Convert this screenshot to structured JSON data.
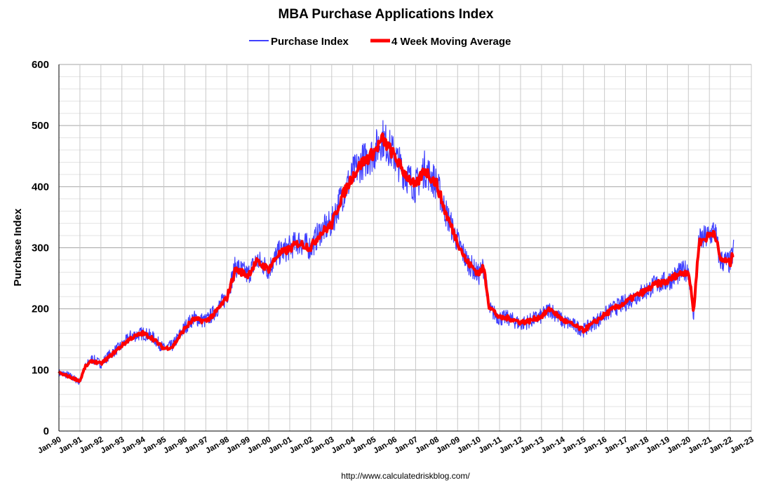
{
  "chart_data": {
    "type": "line",
    "title": "MBA Purchase Applications Index",
    "ylabel": "Purchase Index",
    "xlabel": "",
    "ylim": [
      0,
      600
    ],
    "yticks": [
      0,
      100,
      200,
      300,
      400,
      500,
      600
    ],
    "xlim": [
      "Jan-90",
      "Jan-23"
    ],
    "grid": true,
    "legend_position": "top-center",
    "x_tick_labels": [
      "Jan-90",
      "Jan-91",
      "Jan-92",
      "Jan-93",
      "Jan-94",
      "Jan-95",
      "Jan-96",
      "Jan-97",
      "Jan-98",
      "Jan-99",
      "Jan-00",
      "Jan-01",
      "Jan-02",
      "Jan-03",
      "Jan-04",
      "Jan-05",
      "Jan-06",
      "Jan-07",
      "Jan-08",
      "Jan-09",
      "Jan-10",
      "Jan-11",
      "Jan-12",
      "Jan-13",
      "Jan-14",
      "Jan-15",
      "Jan-16",
      "Jan-17",
      "Jan-18",
      "Jan-19",
      "Jan-20",
      "Jan-21",
      "Jan-22",
      "Jan-23"
    ],
    "series": [
      {
        "name": "Purchase Index",
        "color": "#4040ff",
        "note_style": "thin weekly line",
        "x": [
          "1990-01",
          "1990-06",
          "1991-01",
          "1991-04",
          "1991-08",
          "1992-01",
          "1992-06",
          "1993-01",
          "1993-06",
          "1994-01",
          "1994-06",
          "1995-01",
          "1995-06",
          "1996-01",
          "1996-06",
          "1997-01",
          "1997-06",
          "1998-01",
          "1998-06",
          "1999-01",
          "1999-06",
          "2000-01",
          "2000-06",
          "2001-01",
          "2001-06",
          "2002-01",
          "2002-06",
          "2003-01",
          "2003-06",
          "2004-01",
          "2004-06",
          "2005-01",
          "2005-06",
          "2006-01",
          "2006-06",
          "2007-01",
          "2007-06",
          "2008-01",
          "2008-06",
          "2009-01",
          "2009-06",
          "2010-01",
          "2010-04",
          "2010-07",
          "2011-01",
          "2011-06",
          "2012-01",
          "2012-06",
          "2013-01",
          "2013-06",
          "2014-01",
          "2014-06",
          "2015-01",
          "2015-06",
          "2016-01",
          "2016-06",
          "2017-01",
          "2017-06",
          "2018-01",
          "2018-06",
          "2019-01",
          "2019-06",
          "2020-01",
          "2020-04",
          "2020-07",
          "2021-01",
          "2021-04",
          "2021-07",
          "2022-01",
          "2022-03"
        ],
        "values": [
          95,
          92,
          80,
          105,
          118,
          110,
          125,
          140,
          155,
          160,
          155,
          135,
          140,
          170,
          185,
          180,
          195,
          220,
          270,
          255,
          280,
          265,
          290,
          300,
          310,
          300,
          325,
          340,
          380,
          420,
          440,
          455,
          480,
          450,
          425,
          400,
          430,
          405,
          360,
          310,
          280,
          255,
          270,
          200,
          185,
          185,
          175,
          180,
          188,
          200,
          180,
          175,
          165,
          175,
          190,
          200,
          210,
          220,
          230,
          240,
          245,
          255,
          265,
          190,
          310,
          320,
          330,
          280,
          275,
          300
        ]
      },
      {
        "name": "4 Week Moving Average",
        "color": "#ff0000",
        "note_style": "thick smoothed line",
        "x": [
          "1990-01",
          "1990-06",
          "1991-01",
          "1991-04",
          "1991-08",
          "1992-01",
          "1992-06",
          "1993-01",
          "1993-06",
          "1994-01",
          "1994-06",
          "1995-01",
          "1995-06",
          "1996-01",
          "1996-06",
          "1997-01",
          "1997-06",
          "1998-01",
          "1998-06",
          "1999-01",
          "1999-06",
          "2000-01",
          "2000-06",
          "2001-01",
          "2001-06",
          "2002-01",
          "2002-06",
          "2003-01",
          "2003-06",
          "2004-01",
          "2004-06",
          "2005-01",
          "2005-06",
          "2006-01",
          "2006-06",
          "2007-01",
          "2007-06",
          "2008-01",
          "2008-06",
          "2009-01",
          "2009-06",
          "2010-01",
          "2010-04",
          "2010-07",
          "2011-01",
          "2011-06",
          "2012-01",
          "2012-06",
          "2013-01",
          "2013-06",
          "2014-01",
          "2014-06",
          "2015-01",
          "2015-06",
          "2016-01",
          "2016-06",
          "2017-01",
          "2017-06",
          "2018-01",
          "2018-06",
          "2019-01",
          "2019-06",
          "2020-01",
          "2020-04",
          "2020-07",
          "2021-01",
          "2021-04",
          "2021-07",
          "2022-01",
          "2022-03"
        ],
        "values": [
          95,
          90,
          82,
          105,
          115,
          110,
          122,
          140,
          152,
          160,
          153,
          135,
          138,
          168,
          183,
          180,
          192,
          218,
          265,
          255,
          277,
          265,
          288,
          298,
          308,
          300,
          322,
          338,
          378,
          418,
          438,
          455,
          478,
          450,
          425,
          400,
          428,
          405,
          358,
          310,
          278,
          258,
          268,
          205,
          185,
          185,
          178,
          180,
          188,
          200,
          182,
          175,
          165,
          175,
          190,
          200,
          210,
          220,
          230,
          240,
          245,
          255,
          262,
          195,
          308,
          320,
          328,
          282,
          275,
          295
        ]
      }
    ],
    "source": "http://www.calculatedriskblog.com/"
  }
}
